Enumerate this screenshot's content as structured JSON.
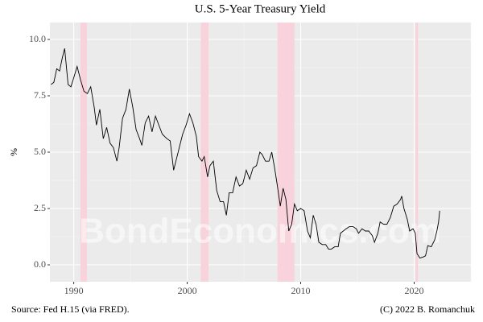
{
  "chart_data": {
    "type": "line",
    "title": "U.S. 5-Year Treasury Yield",
    "ylabel": "%",
    "caption_left": "Source: Fed H.15 (via FRED).",
    "caption_right": "(C) 2022 B. Romanchuk",
    "watermark": "BondEconomics.com",
    "color": "#000000",
    "recession_color": "#f8d3db",
    "grid": true,
    "xlim": [
      1987.9,
      2025.0
    ],
    "ylim": [
      -0.75,
      10.75
    ],
    "xticks": [
      1990,
      2000,
      2010,
      2020
    ],
    "yticks": [
      {
        "value": 0,
        "label": "0.0"
      },
      2.5,
      {
        "value": 5,
        "label": "5.0"
      },
      7.5,
      {
        "value": 10,
        "label": "10.0"
      }
    ],
    "recessions": [
      [
        1990.58,
        1991.17
      ],
      [
        2001.2,
        2001.88
      ],
      [
        2007.95,
        2009.45
      ],
      [
        2020.12,
        2020.33
      ]
    ],
    "x": [
      1988.0,
      1988.25,
      1988.5,
      1988.75,
      1989.0,
      1989.2,
      1989.5,
      1989.75,
      1990.0,
      1990.3,
      1990.6,
      1990.9,
      1991.2,
      1991.5,
      1991.8,
      1992.0,
      1992.3,
      1992.6,
      1992.9,
      1993.2,
      1993.5,
      1993.8,
      1994.0,
      1994.3,
      1994.6,
      1994.9,
      1995.2,
      1995.5,
      1995.8,
      1996.0,
      1996.3,
      1996.6,
      1996.9,
      1997.2,
      1997.5,
      1997.8,
      1998.2,
      1998.5,
      1998.8,
      1999.0,
      1999.3,
      1999.6,
      1999.9,
      2000.2,
      2000.5,
      2000.8,
      2001.0,
      2001.3,
      2001.5,
      2001.8,
      2002.0,
      2002.3,
      2002.6,
      2002.9,
      2003.2,
      2003.45,
      2003.7,
      2004.0,
      2004.3,
      2004.6,
      2004.9,
      2005.2,
      2005.5,
      2005.8,
      2006.1,
      2006.4,
      2006.6,
      2006.9,
      2007.2,
      2007.45,
      2007.7,
      2007.95,
      2008.2,
      2008.45,
      2008.7,
      2008.95,
      2009.2,
      2009.45,
      2009.7,
      2010.0,
      2010.3,
      2010.6,
      2010.85,
      2011.1,
      2011.35,
      2011.6,
      2011.9,
      2012.2,
      2012.45,
      2012.7,
      2013.0,
      2013.3,
      2013.5,
      2013.75,
      2014.0,
      2014.3,
      2014.6,
      2014.9,
      2015.1,
      2015.4,
      2015.7,
      2016.0,
      2016.3,
      2016.5,
      2016.8,
      2017.0,
      2017.3,
      2017.6,
      2017.9,
      2018.2,
      2018.5,
      2018.8,
      2018.9,
      2019.1,
      2019.4,
      2019.6,
      2019.9,
      2020.1,
      2020.25,
      2020.5,
      2020.8,
      2021.0,
      2021.2,
      2021.5,
      2021.8,
      2022.0,
      2022.15,
      2022.25
    ],
    "values": [
      8.0,
      8.1,
      8.7,
      8.6,
      9.2,
      9.6,
      8.0,
      7.9,
      8.3,
      8.8,
      8.2,
      7.7,
      7.6,
      7.9,
      7.0,
      6.2,
      6.9,
      5.6,
      6.1,
      5.4,
      5.2,
      4.6,
      5.2,
      6.5,
      6.9,
      7.8,
      7.0,
      6.0,
      5.6,
      5.3,
      6.3,
      6.6,
      5.9,
      6.6,
      6.2,
      5.8,
      5.6,
      5.5,
      4.2,
      4.6,
      5.2,
      5.8,
      6.2,
      6.7,
      6.3,
      5.7,
      4.8,
      4.6,
      4.8,
      3.9,
      4.4,
      4.6,
      3.3,
      2.8,
      2.8,
      2.2,
      3.2,
      3.2,
      3.9,
      3.5,
      3.6,
      4.2,
      3.8,
      4.3,
      4.4,
      5.0,
      4.9,
      4.6,
      4.6,
      5.0,
      4.3,
      3.5,
      2.6,
      3.4,
      2.9,
      1.5,
      1.8,
      2.7,
      2.4,
      2.5,
      2.4,
      1.5,
      1.2,
      2.2,
      1.8,
      1.0,
      0.9,
      0.9,
      0.7,
      0.7,
      0.8,
      0.8,
      1.4,
      1.5,
      1.6,
      1.7,
      1.7,
      1.6,
      1.4,
      1.6,
      1.5,
      1.5,
      1.3,
      1.0,
      1.4,
      1.9,
      1.8,
      1.8,
      2.1,
      2.6,
      2.7,
      2.9,
      3.05,
      2.5,
      2.0,
      1.5,
      1.6,
      1.4,
      0.5,
      0.3,
      0.35,
      0.4,
      0.85,
      0.8,
      1.1,
      1.5,
      1.9,
      2.4
    ]
  }
}
